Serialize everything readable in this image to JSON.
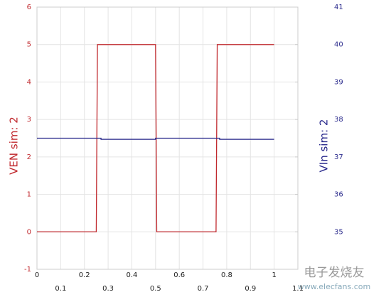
{
  "chart_data": {
    "type": "line",
    "xlim": [
      0,
      1.1
    ],
    "xticks": [
      0,
      0.1,
      0.2,
      0.3,
      0.4,
      0.5,
      0.6,
      0.7,
      0.8,
      0.9,
      1,
      1.1
    ],
    "ylim": [
      -1,
      6
    ],
    "yticks": [
      -1,
      0,
      1,
      2,
      3,
      4,
      5,
      6
    ],
    "y2lim": [
      34,
      41
    ],
    "y2ticks": [
      35,
      36,
      37,
      38,
      39,
      40,
      41
    ],
    "ylabel": "VEN sim:  2",
    "y2label": "VIn sim:  2",
    "grid": true,
    "series": [
      {
        "name": "VEN sim:  2",
        "color": "#c0282d",
        "axis": "y",
        "x": [
          0,
          0.25,
          0.255,
          0.5,
          0.505,
          0.755,
          0.76,
          1.0
        ],
        "values": [
          0,
          0,
          5,
          5,
          0,
          0,
          5,
          5
        ]
      },
      {
        "name": "VIn sim:  2",
        "color": "#2a2a8c",
        "axis": "y2",
        "x": [
          0,
          0.27,
          0.27,
          0.5,
          0.5,
          0.77,
          0.77,
          1.0
        ],
        "values": [
          37.5,
          37.5,
          37.47,
          37.47,
          37.5,
          37.5,
          37.47,
          37.47
        ]
      }
    ],
    "watermark": [
      "电子发烧友",
      "www.elecfans.com"
    ]
  }
}
